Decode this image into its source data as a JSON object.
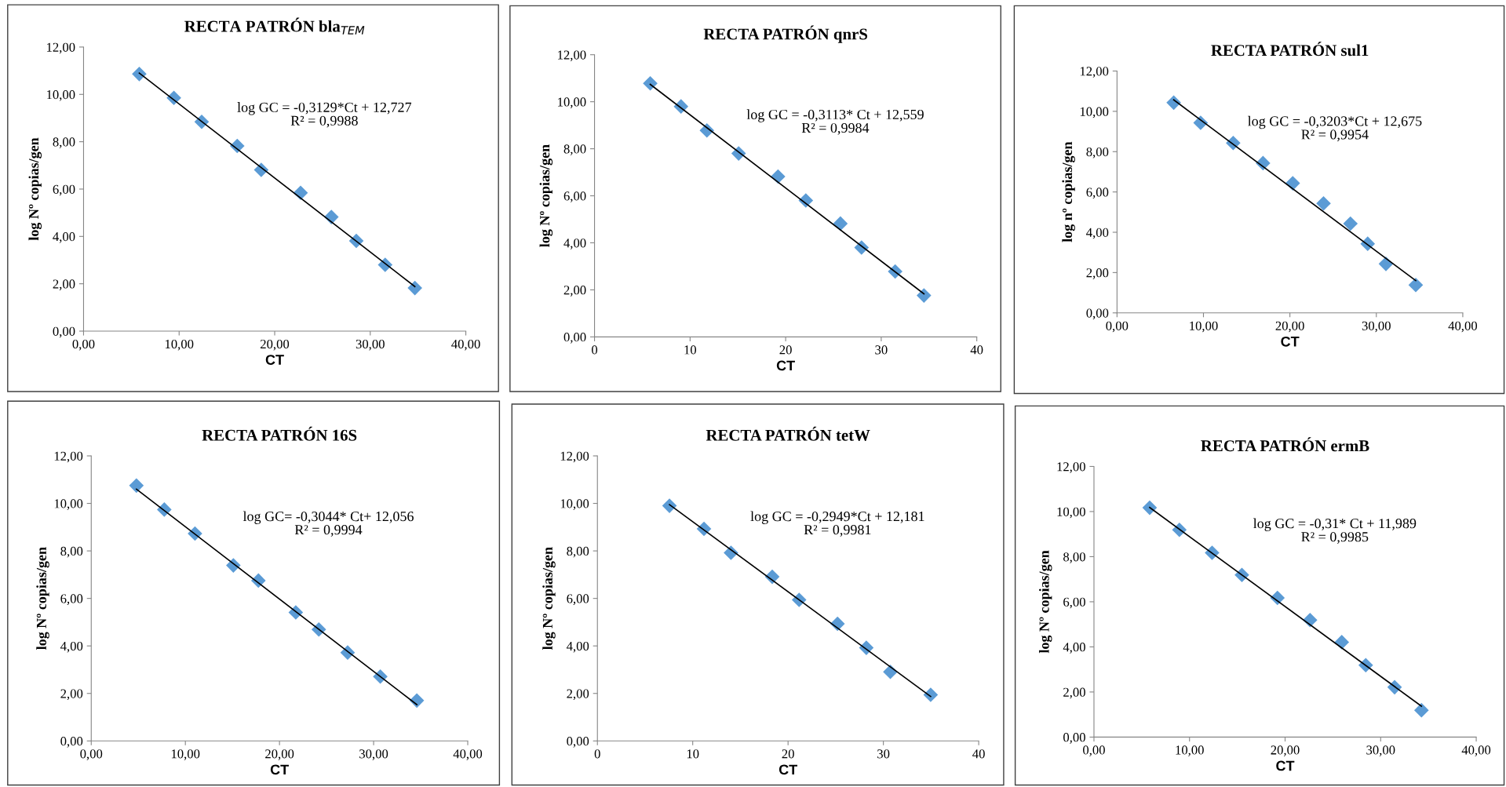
{
  "chart_data": [
    {
      "type": "scatter",
      "title": "RECTA PATRÓN bla$_{TEM}$",
      "xlabel": "CT",
      "ylabel": "log Nº copias/gen",
      "grid": false,
      "xlim": [
        0,
        40
      ],
      "xticks": [
        {
          "value": 0,
          "label": "0,00"
        },
        {
          "value": 10,
          "label": "10,00"
        },
        {
          "value": 20,
          "label": "20,00"
        },
        {
          "value": 30,
          "label": "30,00"
        },
        {
          "value": 40,
          "label": "40,00"
        }
      ],
      "ylim": [
        0,
        12
      ],
      "yticks": [
        {
          "value": 0,
          "label": "0,00"
        },
        {
          "value": 2,
          "label": "2,00"
        },
        {
          "value": 4,
          "label": "4,00"
        },
        {
          "value": 6,
          "label": "6,00"
        },
        {
          "value": 8,
          "label": "8,00"
        },
        {
          "value": 10,
          "label": "10,00"
        },
        {
          "value": 12,
          "label": "12,00"
        }
      ],
      "annotations": [
        "log GC = -0,3129*Ct + 12,727\nR² = 0,9988"
      ],
      "series": [
        {
          "marker": "diamond",
          "color": "#5b9bd5",
          "x": [
            5.83,
            9.45,
            12.36,
            16.08,
            18.59,
            22.71,
            25.93,
            28.54,
            31.56,
            34.67
          ],
          "values": [
            10.86,
            9.85,
            8.84,
            7.82,
            6.81,
            5.84,
            4.82,
            3.81,
            2.8,
            1.82
          ]
        },
        {
          "type": "line",
          "marker": "none",
          "color": "#000000",
          "x": [
            5.83,
            34.67
          ],
          "values": [
            10.9,
            1.88
          ]
        }
      ]
    },
    {
      "type": "scatter",
      "title": "RECTA PATRÓN qnrS",
      "xlabel": "CT",
      "ylabel": "log Nº copias/gen",
      "grid": false,
      "xlim": [
        0,
        40
      ],
      "xticks": [
        0,
        10,
        20,
        30,
        40
      ],
      "ylim": [
        0,
        12
      ],
      "yticks": [
        {
          "value": 0,
          "label": "0,00"
        },
        {
          "value": 2,
          "label": "2,00"
        },
        {
          "value": 4,
          "label": "4,00"
        },
        {
          "value": 6,
          "label": "6,00"
        },
        {
          "value": 8,
          "label": "8,00"
        },
        {
          "value": 10,
          "label": "10,00"
        },
        {
          "value": 12,
          "label": "12,00"
        }
      ],
      "annotations": [
        "log GC = -0,3113* Ct + 12,559\nR² = 0,9984"
      ],
      "series": [
        {
          "marker": "diamond",
          "color": "#5b9bd5",
          "x": [
            5.83,
            9.05,
            11.76,
            15.08,
            19.2,
            22.11,
            25.73,
            27.94,
            31.46,
            34.47
          ],
          "values": [
            10.78,
            9.8,
            8.78,
            7.8,
            6.82,
            5.8,
            4.82,
            3.8,
            2.78,
            1.76
          ]
        },
        {
          "type": "line",
          "marker": "none",
          "color": "#000000",
          "x": [
            5.83,
            34.47
          ],
          "values": [
            10.74,
            1.83
          ]
        }
      ]
    },
    {
      "type": "scatter",
      "title": "RECTA PATRÓN sul1",
      "xlabel": "CT",
      "ylabel": "log nº copias/gen",
      "grid": false,
      "xlim": [
        0,
        40
      ],
      "xticks": [
        {
          "value": 0,
          "label": "0,00"
        },
        {
          "value": 10,
          "label": "10,00"
        },
        {
          "value": 20,
          "label": "20,00"
        },
        {
          "value": 30,
          "label": "30,00"
        },
        {
          "value": 40,
          "label": "40,00"
        }
      ],
      "ylim": [
        0,
        12
      ],
      "yticks": [
        {
          "value": 0,
          "label": "0,00"
        },
        {
          "value": 2,
          "label": "2,00"
        },
        {
          "value": 4,
          "label": "4,00"
        },
        {
          "value": 6,
          "label": "6,00"
        },
        {
          "value": 8,
          "label": "8,00"
        },
        {
          "value": 10,
          "label": "10,00"
        },
        {
          "value": 12,
          "label": "12,00"
        }
      ],
      "annotations": [
        "log GC = -0,3203*Ct + 12,675\nR² = 0,9954"
      ],
      "series": [
        {
          "marker": "diamond",
          "color": "#5b9bd5",
          "x": [
            6.56,
            9.67,
            13.44,
            16.89,
            20.33,
            23.89,
            27.0,
            29.0,
            31.11,
            34.56
          ],
          "values": [
            10.43,
            9.43,
            8.43,
            7.43,
            6.43,
            5.43,
            4.43,
            3.43,
            2.43,
            1.38
          ]
        },
        {
          "type": "line",
          "marker": "none",
          "color": "#000000",
          "x": [
            6.56,
            34.56
          ],
          "values": [
            10.57,
            1.6
          ]
        }
      ]
    },
    {
      "type": "scatter",
      "title": "RECTA PATRÓN 16S",
      "xlabel": "CT",
      "ylabel": "log Nº copias/gen",
      "grid": false,
      "xlim": [
        0,
        40
      ],
      "xticks": [
        {
          "value": 0,
          "label": "0,00"
        },
        {
          "value": 10,
          "label": "10,00"
        },
        {
          "value": 20,
          "label": "20,00"
        },
        {
          "value": 30,
          "label": "30,00"
        },
        {
          "value": 40,
          "label": "40,00"
        }
      ],
      "ylim": [
        0,
        12
      ],
      "yticks": [
        {
          "value": 0,
          "label": "0,00"
        },
        {
          "value": 2,
          "label": "2,00"
        },
        {
          "value": 4,
          "label": "4,00"
        },
        {
          "value": 6,
          "label": "6,00"
        },
        {
          "value": 8,
          "label": "8,00"
        },
        {
          "value": 10,
          "label": "10,00"
        },
        {
          "value": 12,
          "label": "12,00"
        }
      ],
      "annotations": [
        "log GC= -0,3044* Ct+ 12,056\nR² = 0,9994"
      ],
      "series": [
        {
          "marker": "diamond",
          "color": "#5b9bd5",
          "x": [
            4.8,
            7.76,
            11.02,
            15.1,
            17.76,
            21.73,
            24.18,
            27.24,
            30.71,
            34.59
          ],
          "values": [
            10.75,
            9.74,
            8.73,
            7.39,
            6.75,
            5.41,
            4.69,
            3.72,
            2.71,
            1.7
          ]
        },
        {
          "type": "line",
          "marker": "none",
          "color": "#000000",
          "x": [
            4.8,
            34.59
          ],
          "values": [
            10.6,
            1.53
          ]
        }
      ]
    },
    {
      "type": "scatter",
      "title": "RECTA PATRÓN tetW",
      "xlabel": "CT",
      "ylabel": "log Nº copias/gen",
      "grid": false,
      "xlim": [
        0,
        40
      ],
      "xticks": [
        0,
        10,
        20,
        30,
        40
      ],
      "ylim": [
        0,
        12
      ],
      "yticks": [
        {
          "value": 0,
          "label": "0,00"
        },
        {
          "value": 2,
          "label": "2,00"
        },
        {
          "value": 4,
          "label": "4,00"
        },
        {
          "value": 6,
          "label": "6,00"
        },
        {
          "value": 8,
          "label": "8,00"
        },
        {
          "value": 10,
          "label": "10,00"
        },
        {
          "value": 12,
          "label": "12,00"
        }
      ],
      "annotations": [
        "log GC = -0,2949*Ct + 12,181\nR² = 0,9981"
      ],
      "series": [
        {
          "marker": "diamond",
          "color": "#5b9bd5",
          "x": [
            7.56,
            11.18,
            14.01,
            18.34,
            21.16,
            25.19,
            28.21,
            30.73,
            34.96
          ],
          "values": [
            9.9,
            8.93,
            7.92,
            6.91,
            5.94,
            4.93,
            3.92,
            2.91,
            1.94
          ]
        },
        {
          "type": "line",
          "marker": "none",
          "color": "#000000",
          "x": [
            7.56,
            34.96
          ],
          "values": [
            9.95,
            1.87
          ]
        }
      ]
    },
    {
      "type": "scatter",
      "title": "RECTA PATRÓN ermB",
      "xlabel": "CT",
      "ylabel": "log Nº copias/gen",
      "grid": false,
      "xlim": [
        0,
        40
      ],
      "xticks": [
        {
          "value": 0,
          "label": "0,00"
        },
        {
          "value": 10,
          "label": "10,00"
        },
        {
          "value": 20,
          "label": "20,00"
        },
        {
          "value": 30,
          "label": "30,00"
        },
        {
          "value": 40,
          "label": "40,00"
        }
      ],
      "ylim": [
        0,
        12
      ],
      "yticks": [
        {
          "value": 0,
          "label": "0,00"
        },
        {
          "value": 2,
          "label": "2,00"
        },
        {
          "value": 4,
          "label": "4,00"
        },
        {
          "value": 6,
          "label": "6,00"
        },
        {
          "value": 8,
          "label": "8,00"
        },
        {
          "value": 10,
          "label": "10,00"
        },
        {
          "value": 12,
          "label": "12,00"
        }
      ],
      "annotations": [
        "log GC = -0,31* Ct + 11,989\nR² = 0,9985"
      ],
      "series": [
        {
          "marker": "diamond",
          "color": "#5b9bd5",
          "x": [
            5.83,
            8.94,
            12.36,
            15.48,
            19.2,
            22.61,
            25.93,
            28.44,
            31.46,
            34.27
          ],
          "values": [
            10.17,
            9.19,
            8.17,
            7.19,
            6.17,
            5.19,
            4.21,
            3.19,
            2.21,
            1.19
          ]
        },
        {
          "type": "line",
          "marker": "none",
          "color": "#000000",
          "x": [
            5.83,
            34.27
          ],
          "values": [
            10.18,
            1.37
          ]
        }
      ]
    }
  ]
}
